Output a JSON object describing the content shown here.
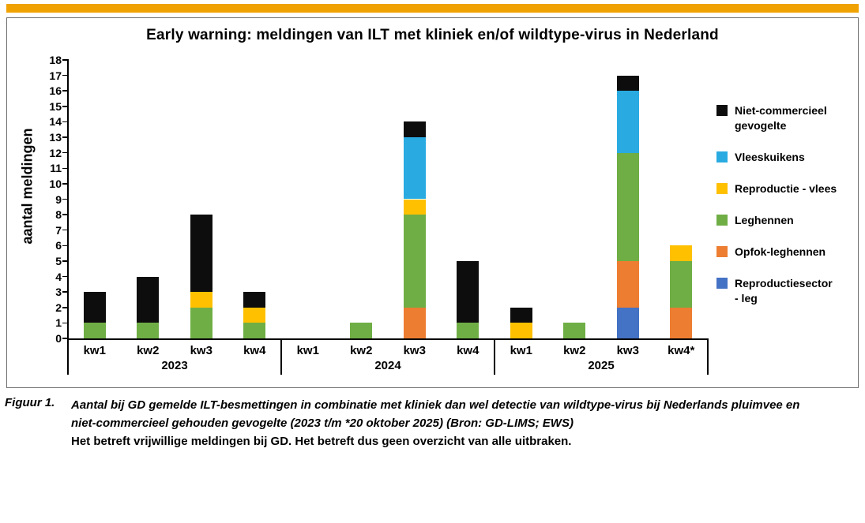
{
  "colors": {
    "top_bar": "#F0A202",
    "axis": "#000000"
  },
  "chart_data": {
    "type": "bar",
    "stacked": true,
    "title": "Early warning: meldingen van ILT met kliniek en/of wildtype-virus in Nederland",
    "ylabel": "aantal meldingen",
    "ylim": [
      0,
      18
    ],
    "ytick_step": 1,
    "grid": false,
    "legend_position": "right",
    "categories": [
      "kw1",
      "kw2",
      "kw3",
      "kw4",
      "kw1",
      "kw2",
      "kw3",
      "kw4",
      "kw1",
      "kw2",
      "kw3",
      "kw4*"
    ],
    "groups": [
      {
        "label": "2023",
        "span": 4
      },
      {
        "label": "2024",
        "span": 4
      },
      {
        "label": "2025",
        "span": 4
      }
    ],
    "series": [
      {
        "name": "Reproductiesector - leg",
        "color": "#4472C4",
        "values": [
          0,
          0,
          0,
          0,
          0,
          0,
          0,
          0,
          0,
          0,
          2,
          0
        ]
      },
      {
        "name": "Opfok-leghennen",
        "color": "#ED7D31",
        "values": [
          0,
          0,
          0,
          0,
          0,
          0,
          2,
          0,
          0,
          0,
          3,
          2
        ]
      },
      {
        "name": "Leghennen",
        "color": "#6FAE45",
        "values": [
          1,
          1,
          2,
          1,
          0,
          1,
          6,
          1,
          0,
          1,
          7,
          3
        ]
      },
      {
        "name": "Reproductie - vlees",
        "color": "#FFC000",
        "values": [
          0,
          0,
          1,
          1,
          0,
          0,
          1,
          0,
          1,
          0,
          0,
          1
        ]
      },
      {
        "name": "Vleeskuikens",
        "color": "#29ABE2",
        "values": [
          0,
          0,
          0,
          0,
          0,
          0,
          4,
          0,
          0,
          0,
          4,
          0
        ]
      },
      {
        "name": "Niet-commercieel gevogelte",
        "color": "#0D0D0D",
        "values": [
          2,
          3,
          5,
          1,
          0,
          0,
          1,
          4,
          1,
          0,
          1,
          0
        ]
      }
    ],
    "legend": [
      {
        "series": "Niet-commercieel gevogelte",
        "lines": [
          "Niet-commercieel",
          "gevogelte"
        ]
      },
      {
        "series": "Vleeskuikens",
        "lines": [
          "Vleeskuikens"
        ]
      },
      {
        "series": "Reproductie - vlees",
        "lines": [
          "Reproductie - vlees"
        ]
      },
      {
        "series": "Leghennen",
        "lines": [
          "Leghennen"
        ]
      },
      {
        "series": "Opfok-leghennen",
        "lines": [
          "Opfok-leghennen"
        ]
      },
      {
        "series": "Reproductiesector - leg",
        "lines": [
          "Reproductiesector",
          "- leg"
        ]
      }
    ]
  },
  "caption": {
    "figure_label": "Figuur 1.",
    "line1": "Aantal bij GD gemelde ILT-besmettingen in combinatie met kliniek dan wel detectie van wildtype-virus bij Nederlands pluimvee en",
    "line2": "niet-commercieel gehouden gevogelte (2023 t/m *20 oktober 2025) (Bron: GD-LIMS; EWS)",
    "line3": "Het betreft vrijwillige meldingen bij GD. Het betreft dus geen overzicht van alle uitbraken."
  }
}
